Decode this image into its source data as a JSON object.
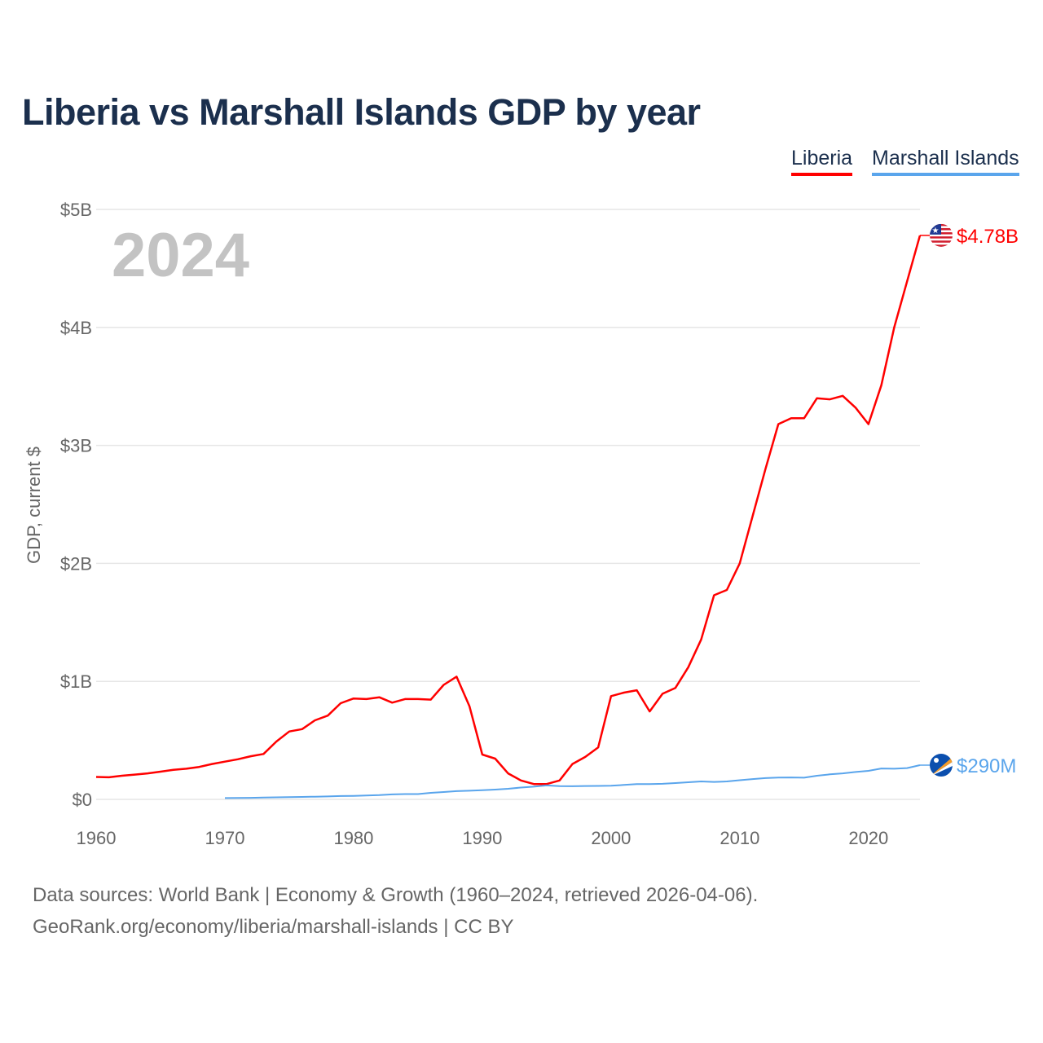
{
  "chart_data": {
    "type": "line",
    "title": "Liberia vs Marshall Islands GDP by year",
    "ylabel": "GDP, current $",
    "xlabel": "",
    "current_year_label": "2024",
    "xlim": [
      1960,
      2024
    ],
    "ylim": [
      0,
      5
    ],
    "y_unit": "billion USD",
    "x_ticks": [
      "1960",
      "1970",
      "1980",
      "1990",
      "2000",
      "2010",
      "2020"
    ],
    "x_tick_values": [
      1960,
      1970,
      1980,
      1990,
      2000,
      2010,
      2020
    ],
    "y_ticks": [
      "$0",
      "$1B",
      "$2B",
      "$3B",
      "$4B",
      "$5B"
    ],
    "y_tick_values": [
      0,
      1,
      2,
      3,
      4,
      5
    ],
    "grid": true,
    "legend_position": "top-right",
    "series": [
      {
        "name": "Liberia",
        "color": "#ff0000",
        "end_label": "$4.78B",
        "flag": "liberia-flag",
        "start_year": 1960,
        "values": [
          0.19,
          0.187,
          0.2,
          0.21,
          0.22,
          0.235,
          0.25,
          0.26,
          0.275,
          0.3,
          0.32,
          0.34,
          0.365,
          0.385,
          0.49,
          0.575,
          0.595,
          0.67,
          0.71,
          0.815,
          0.855,
          0.85,
          0.865,
          0.82,
          0.85,
          0.85,
          0.845,
          0.97,
          1.04,
          0.79,
          0.38,
          0.345,
          0.22,
          0.16,
          0.13,
          0.13,
          0.16,
          0.3,
          0.36,
          0.44,
          0.875,
          0.905,
          0.925,
          0.745,
          0.895,
          0.945,
          1.12,
          1.355,
          1.73,
          1.775,
          2.0,
          2.4,
          2.8,
          3.18,
          3.23,
          3.23,
          3.4,
          3.39,
          3.42,
          3.32,
          3.18,
          3.51,
          4.0,
          4.39,
          4.78
        ]
      },
      {
        "name": "Marshall Islands",
        "color": "#5aa5ec",
        "end_label": "$290M",
        "flag": "marshall-islands-flag",
        "start_year": 1970,
        "values": [
          0.011,
          0.012,
          0.013,
          0.015,
          0.017,
          0.019,
          0.021,
          0.023,
          0.025,
          0.028,
          0.03,
          0.033,
          0.036,
          0.042,
          0.045,
          0.045,
          0.055,
          0.062,
          0.07,
          0.073,
          0.078,
          0.083,
          0.09,
          0.1,
          0.108,
          0.118,
          0.112,
          0.111,
          0.113,
          0.114,
          0.115,
          0.122,
          0.13,
          0.13,
          0.132,
          0.138,
          0.145,
          0.152,
          0.148,
          0.152,
          0.162,
          0.172,
          0.18,
          0.185,
          0.186,
          0.184,
          0.2,
          0.212,
          0.22,
          0.232,
          0.242,
          0.262,
          0.26,
          0.265,
          0.29
        ]
      }
    ]
  },
  "footer": {
    "source_line": "Data sources: World Bank | Economy & Growth (1960–2024, retrieved 2026-04-06).",
    "credit_line": "GeoRank.org/economy/liberia/marshall-islands | CC BY"
  }
}
